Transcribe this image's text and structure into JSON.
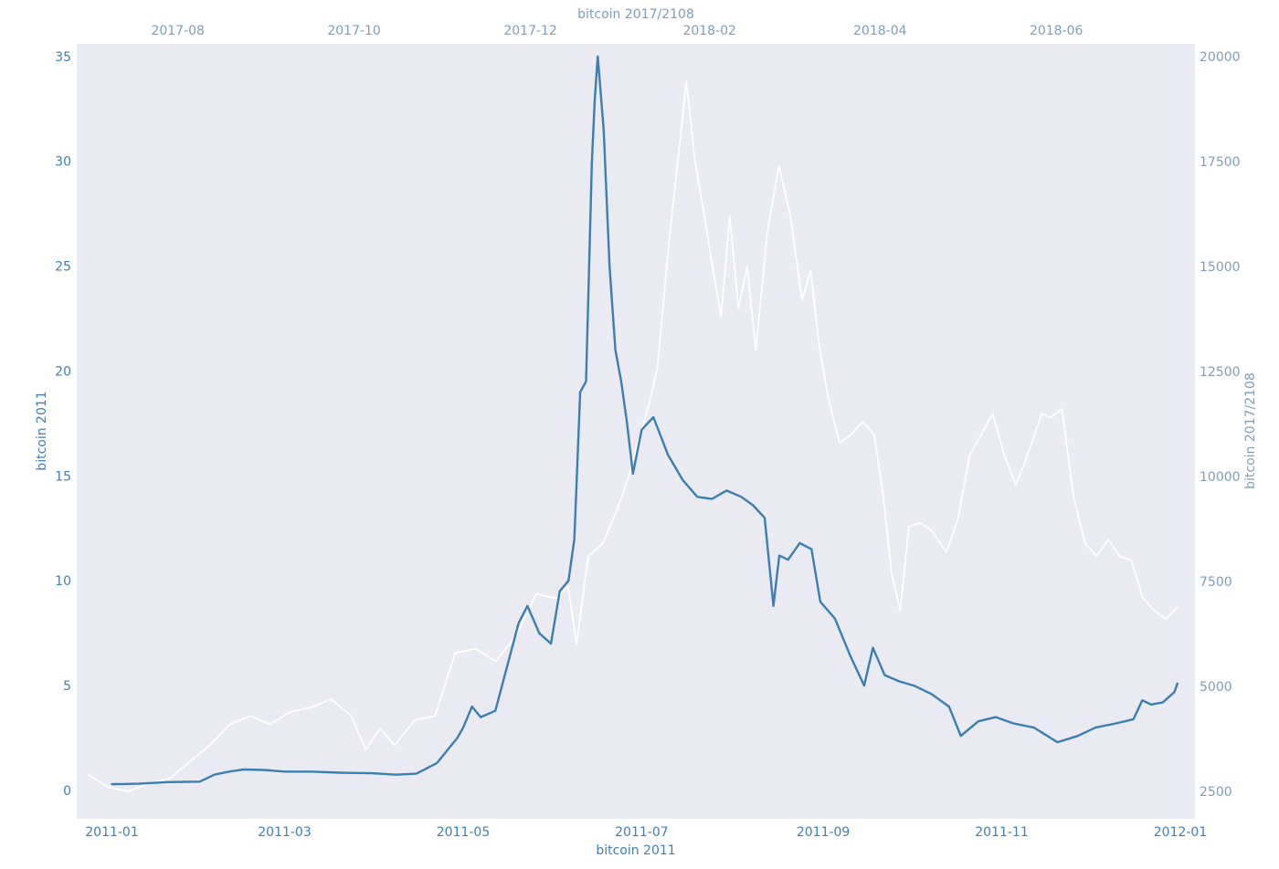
{
  "chart_data": {
    "type": "line",
    "title": "",
    "colors": {
      "background": "#e9eaf2",
      "series_2011": "#3a7fb0",
      "series_2017": "#ffffff",
      "axis_2011_text": "#3f7fb5",
      "axis_2017_text": "#7f9dbb"
    },
    "grid": false,
    "axes": {
      "bottom": {
        "label": "bitcoin 2011",
        "range": [
          "2010-12-20",
          "2012-01-06"
        ],
        "ticks": [
          "2011-01",
          "2011-03",
          "2011-05",
          "2011-07",
          "2011-09",
          "2011-11",
          "2012-01"
        ]
      },
      "top": {
        "label": "bitcoin 2017/2108",
        "range": [
          "2017-06-27",
          "2018-07-19"
        ],
        "ticks": [
          "2017-08",
          "2017-10",
          "2017-12",
          "2018-02",
          "2018-04",
          "2018-06"
        ]
      },
      "left": {
        "label": "bitcoin 2011",
        "range": [
          -1.35,
          35.6
        ],
        "ticks": [
          0,
          5,
          10,
          15,
          20,
          25,
          30,
          35
        ]
      },
      "right": {
        "label": "bitcoin 2017/2108",
        "range": [
          1850,
          20300
        ],
        "ticks": [
          2500,
          5000,
          7500,
          10000,
          12500,
          15000,
          17500,
          20000
        ]
      }
    },
    "series": [
      {
        "axis_x": "top",
        "axis_y": "right",
        "points": [
          [
            "2017-07-01",
            2900
          ],
          [
            "2017-07-08",
            2600
          ],
          [
            "2017-07-15",
            2500
          ],
          [
            "2017-07-22",
            2700
          ],
          [
            "2017-07-29",
            2800
          ],
          [
            "2017-08-05",
            3200
          ],
          [
            "2017-08-12",
            3600
          ],
          [
            "2017-08-19",
            4100
          ],
          [
            "2017-08-26",
            4300
          ],
          [
            "2017-09-02",
            4100
          ],
          [
            "2017-09-09",
            4400
          ],
          [
            "2017-09-16",
            4500
          ],
          [
            "2017-09-23",
            4700
          ],
          [
            "2017-09-30",
            4300
          ],
          [
            "2017-10-05",
            3500
          ],
          [
            "2017-10-10",
            4000
          ],
          [
            "2017-10-15",
            3600
          ],
          [
            "2017-10-22",
            4200
          ],
          [
            "2017-10-29",
            4300
          ],
          [
            "2017-11-05",
            5800
          ],
          [
            "2017-11-12",
            5900
          ],
          [
            "2017-11-19",
            5600
          ],
          [
            "2017-11-26",
            6200
          ],
          [
            "2017-12-03",
            7200
          ],
          [
            "2017-12-10",
            7100
          ],
          [
            "2017-12-14",
            7400
          ],
          [
            "2017-12-17",
            6000
          ],
          [
            "2017-12-21",
            8100
          ],
          [
            "2017-12-26",
            8400
          ],
          [
            "2017-12-31",
            9200
          ],
          [
            "2018-01-04",
            10000
          ],
          [
            "2018-01-08",
            11000
          ],
          [
            "2018-01-11",
            11700
          ],
          [
            "2018-01-14",
            12600
          ],
          [
            "2018-01-18",
            15600
          ],
          [
            "2018-01-21",
            17500
          ],
          [
            "2018-01-24",
            19400
          ],
          [
            "2018-01-27",
            17500
          ],
          [
            "2018-01-30",
            16300
          ],
          [
            "2018-02-02",
            15000
          ],
          [
            "2018-02-05",
            13800
          ],
          [
            "2018-02-08",
            16200
          ],
          [
            "2018-02-11",
            14000
          ],
          [
            "2018-02-14",
            15000
          ],
          [
            "2018-02-17",
            13000
          ],
          [
            "2018-02-21",
            15800
          ],
          [
            "2018-02-25",
            17400
          ],
          [
            "2018-03-01",
            16200
          ],
          [
            "2018-03-05",
            14200
          ],
          [
            "2018-03-08",
            14900
          ],
          [
            "2018-03-11",
            13100
          ],
          [
            "2018-03-14",
            11900
          ],
          [
            "2018-03-18",
            10800
          ],
          [
            "2018-03-22",
            11000
          ],
          [
            "2018-03-26",
            11300
          ],
          [
            "2018-03-30",
            11000
          ],
          [
            "2018-04-02",
            9600
          ],
          [
            "2018-04-05",
            7700
          ],
          [
            "2018-04-08",
            6800
          ],
          [
            "2018-04-11",
            8800
          ],
          [
            "2018-04-15",
            8900
          ],
          [
            "2018-04-19",
            8700
          ],
          [
            "2018-04-24",
            8200
          ],
          [
            "2018-04-28",
            9000
          ],
          [
            "2018-05-02",
            10500
          ],
          [
            "2018-05-06",
            11000
          ],
          [
            "2018-05-10",
            11500
          ],
          [
            "2018-05-14",
            10500
          ],
          [
            "2018-05-18",
            9800
          ],
          [
            "2018-05-21",
            10300
          ],
          [
            "2018-05-24",
            10900
          ],
          [
            "2018-05-27",
            11500
          ],
          [
            "2018-05-30",
            11400
          ],
          [
            "2018-06-03",
            11600
          ],
          [
            "2018-06-07",
            9500
          ],
          [
            "2018-06-11",
            8400
          ],
          [
            "2018-06-15",
            8100
          ],
          [
            "2018-06-19",
            8500
          ],
          [
            "2018-06-23",
            8100
          ],
          [
            "2018-06-27",
            8000
          ],
          [
            "2018-07-01",
            7100
          ],
          [
            "2018-07-05",
            6800
          ],
          [
            "2018-07-09",
            6600
          ],
          [
            "2018-07-13",
            6900
          ]
        ]
      },
      {
        "axis_x": "bottom",
        "axis_y": "left",
        "points": [
          [
            "2011-01-01",
            0.3
          ],
          [
            "2011-01-10",
            0.32
          ],
          [
            "2011-01-20",
            0.4
          ],
          [
            "2011-01-31",
            0.42
          ],
          [
            "2011-02-05",
            0.75
          ],
          [
            "2011-02-10",
            0.9
          ],
          [
            "2011-02-15",
            1.0
          ],
          [
            "2011-02-22",
            0.98
          ],
          [
            "2011-03-01",
            0.9
          ],
          [
            "2011-03-10",
            0.9
          ],
          [
            "2011-03-20",
            0.85
          ],
          [
            "2011-03-31",
            0.82
          ],
          [
            "2011-04-08",
            0.75
          ],
          [
            "2011-04-15",
            0.8
          ],
          [
            "2011-04-22",
            1.3
          ],
          [
            "2011-04-29",
            2.5
          ],
          [
            "2011-05-01",
            3.0
          ],
          [
            "2011-05-04",
            4.0
          ],
          [
            "2011-05-07",
            3.5
          ],
          [
            "2011-05-12",
            3.8
          ],
          [
            "2011-05-16",
            5.9
          ],
          [
            "2011-05-20",
            8.0
          ],
          [
            "2011-05-23",
            8.8
          ],
          [
            "2011-05-27",
            7.5
          ],
          [
            "2011-05-31",
            7.0
          ],
          [
            "2011-06-03",
            9.5
          ],
          [
            "2011-06-06",
            10.0
          ],
          [
            "2011-06-08",
            12.0
          ],
          [
            "2011-06-10",
            19.0
          ],
          [
            "2011-06-12",
            19.5
          ],
          [
            "2011-06-14",
            30.0
          ],
          [
            "2011-06-15",
            33.0
          ],
          [
            "2011-06-16",
            35.0
          ],
          [
            "2011-06-18",
            31.5
          ],
          [
            "2011-06-20",
            25.0
          ],
          [
            "2011-06-22",
            21.0
          ],
          [
            "2011-06-24",
            19.5
          ],
          [
            "2011-06-26",
            17.5
          ],
          [
            "2011-06-28",
            15.1
          ],
          [
            "2011-07-01",
            17.2
          ],
          [
            "2011-07-05",
            17.8
          ],
          [
            "2011-07-10",
            16.0
          ],
          [
            "2011-07-15",
            14.8
          ],
          [
            "2011-07-20",
            14.0
          ],
          [
            "2011-07-25",
            13.9
          ],
          [
            "2011-07-30",
            14.3
          ],
          [
            "2011-08-04",
            14.0
          ],
          [
            "2011-08-08",
            13.6
          ],
          [
            "2011-08-12",
            13.0
          ],
          [
            "2011-08-15",
            8.8
          ],
          [
            "2011-08-17",
            11.2
          ],
          [
            "2011-08-20",
            11.0
          ],
          [
            "2011-08-24",
            11.8
          ],
          [
            "2011-08-28",
            11.5
          ],
          [
            "2011-08-31",
            9.0
          ],
          [
            "2011-09-05",
            8.2
          ],
          [
            "2011-09-10",
            6.5
          ],
          [
            "2011-09-15",
            5.0
          ],
          [
            "2011-09-18",
            6.8
          ],
          [
            "2011-09-22",
            5.5
          ],
          [
            "2011-09-27",
            5.2
          ],
          [
            "2011-10-02",
            5.0
          ],
          [
            "2011-10-08",
            4.6
          ],
          [
            "2011-10-14",
            4.0
          ],
          [
            "2011-10-18",
            2.6
          ],
          [
            "2011-10-24",
            3.3
          ],
          [
            "2011-10-30",
            3.5
          ],
          [
            "2011-11-05",
            3.2
          ],
          [
            "2011-11-12",
            3.0
          ],
          [
            "2011-11-20",
            2.3
          ],
          [
            "2011-11-27",
            2.6
          ],
          [
            "2011-12-03",
            3.0
          ],
          [
            "2011-12-10",
            3.2
          ],
          [
            "2011-12-16",
            3.4
          ],
          [
            "2011-12-19",
            4.3
          ],
          [
            "2011-12-22",
            4.1
          ],
          [
            "2011-12-26",
            4.2
          ],
          [
            "2011-12-30",
            4.7
          ],
          [
            "2011-12-31",
            5.1
          ]
        ]
      }
    ]
  }
}
